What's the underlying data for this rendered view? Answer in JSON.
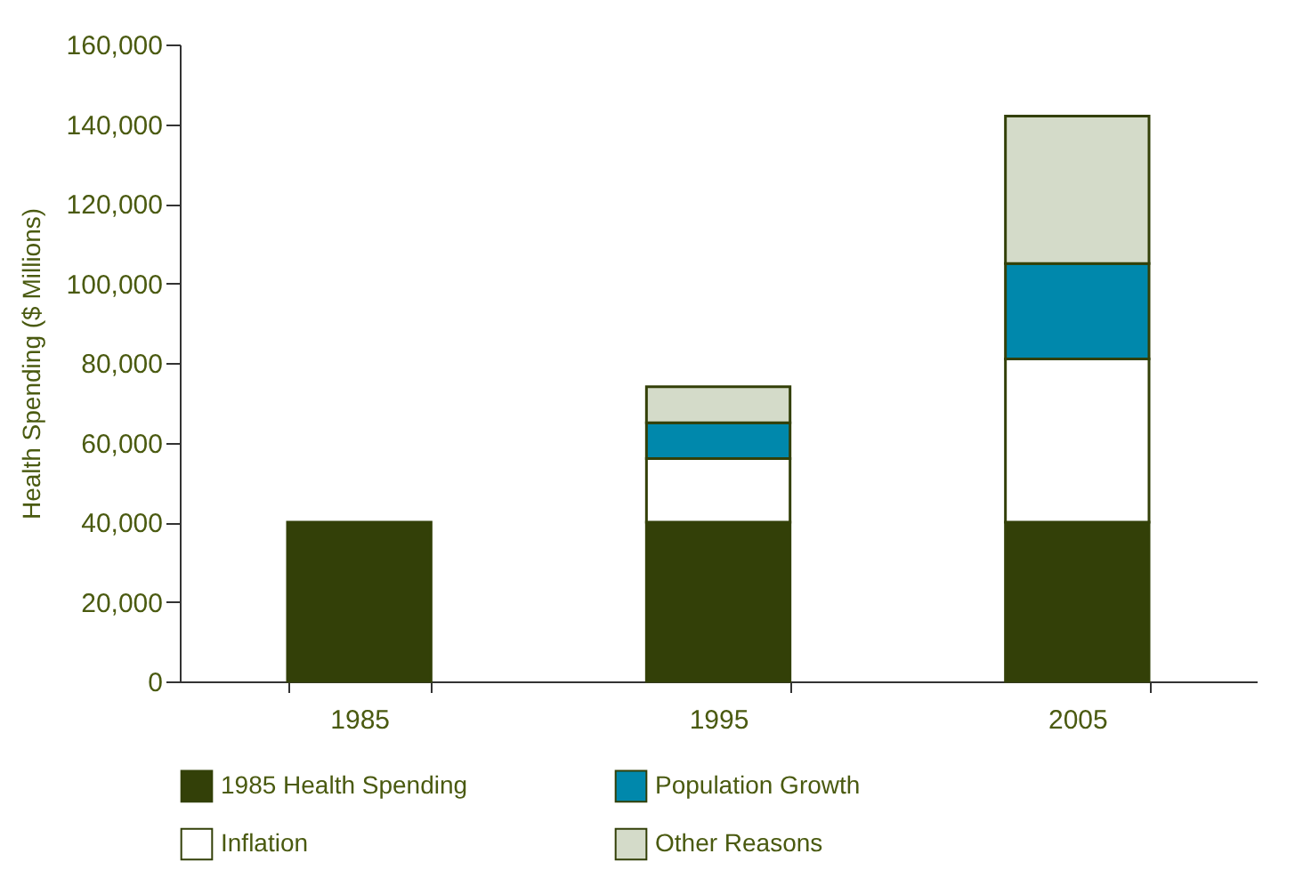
{
  "chart_data": {
    "type": "bar",
    "stacked": true,
    "ylabel": "Health Spending ($ Millions)",
    "categories": [
      "1985",
      "1995",
      "2005"
    ],
    "series": [
      {
        "name": "1985 Health Spending",
        "color": "#334008",
        "values": [
          40000,
          40000,
          40000
        ]
      },
      {
        "name": "Inflation",
        "color": "#ffffff",
        "values": [
          null,
          16000,
          41000
        ]
      },
      {
        "name": "Population Growth",
        "color": "#0088ac",
        "values": [
          null,
          9000,
          24000
        ]
      },
      {
        "name": "Other Reasons",
        "color": "#d4dbc9",
        "values": [
          null,
          9000,
          37000
        ]
      }
    ],
    "ylim": [
      0,
      160000
    ],
    "yticks": [
      0,
      {
        "value": 20000,
        "label": "20,000"
      },
      {
        "value": 40000,
        "label": "40,000"
      },
      {
        "value": 60000,
        "label": "60,000"
      },
      {
        "value": 80000,
        "label": "80,000"
      },
      {
        "value": 100000,
        "label": "100,000"
      },
      {
        "value": 120000,
        "label": "120,000"
      },
      {
        "value": 140000,
        "label": "140,000"
      },
      {
        "value": 160000,
        "label": "160,000"
      }
    ],
    "grid": false,
    "legend": "bottom"
  }
}
